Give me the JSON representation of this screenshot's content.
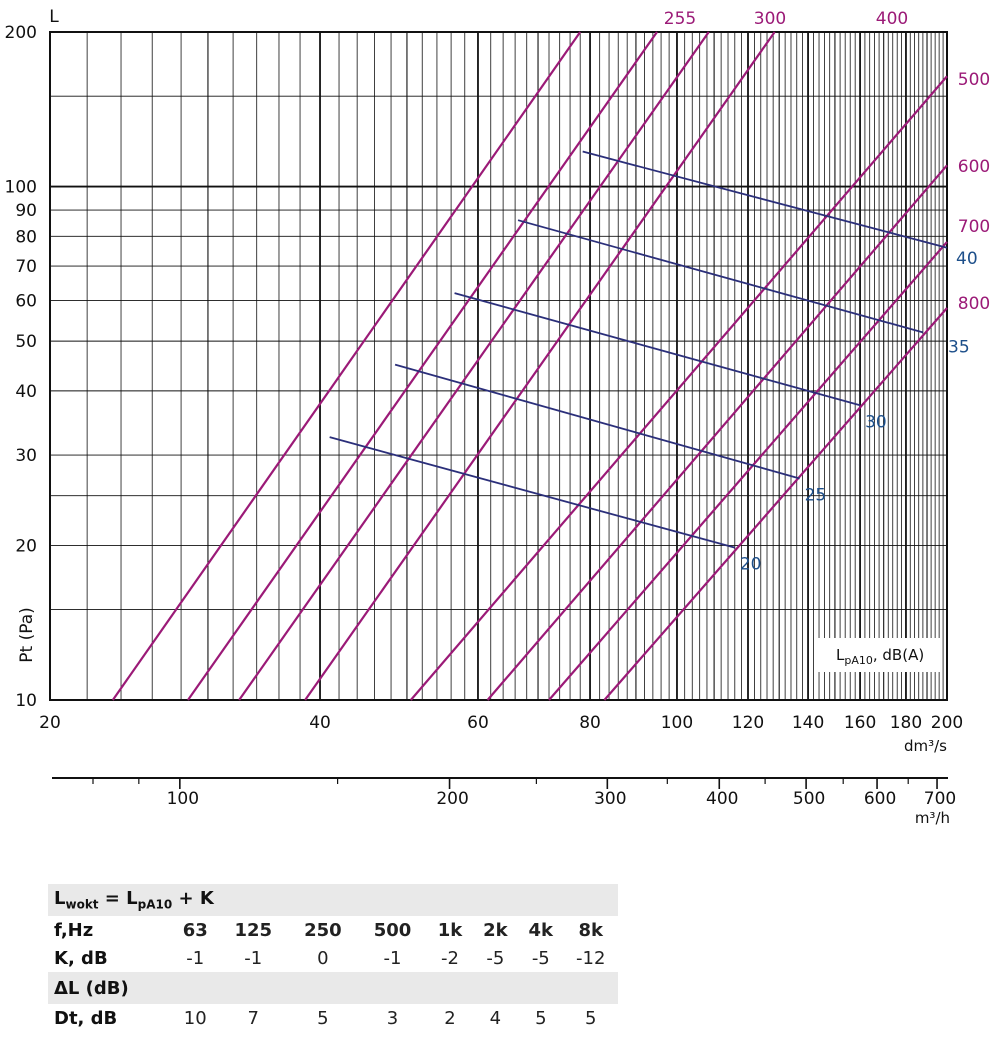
{
  "chart_data": {
    "type": "line",
    "xlabel": "dm³/s",
    "ylabel": "Pt (Pa)",
    "y_top_label": "L",
    "legend_label": "L_pA10, dB(A)",
    "legend_main": "L",
    "legend_sub": "pA10",
    "legend_tail": ", dB(A)",
    "x_scale": "log",
    "y_scale": "log",
    "xlim": [
      20,
      200
    ],
    "ylim": [
      10,
      200
    ],
    "x_ticks": [
      20,
      40,
      60,
      80,
      100,
      120,
      140,
      160,
      180,
      200
    ],
    "x_tick_labels": [
      "20",
      "40",
      "60",
      "80",
      "100",
      "120",
      "140",
      "160",
      "180",
      "200"
    ],
    "y_ticks": [
      10,
      20,
      30,
      40,
      50,
      60,
      70,
      80,
      90,
      100,
      200
    ],
    "y_tick_labels": [
      "10",
      "20",
      "30",
      "40",
      "50",
      "60",
      "70",
      "80",
      "90",
      "100",
      "200"
    ],
    "grid": true,
    "secondary_axis": {
      "label": "m³/h",
      "tick_values": [
        100,
        200,
        300,
        400,
        500,
        600,
        700
      ],
      "tick_labels": [
        "100",
        "200",
        "300",
        "400",
        "500",
        "600",
        "700"
      ]
    },
    "diameter_series": [
      {
        "name": "255",
        "points": [
          [
            23.5,
            10
          ],
          [
            78,
            200
          ]
        ]
      },
      {
        "name": "300",
        "points": [
          [
            28.5,
            10
          ],
          [
            95,
            200
          ]
        ]
      },
      {
        "name": "400",
        "points": [
          [
            38.5,
            10
          ],
          [
            128.5,
            200
          ]
        ]
      },
      {
        "name": "500",
        "points": [
          [
            50.5,
            10
          ],
          [
            200,
            164
          ]
        ]
      },
      {
        "name": "600",
        "points": [
          [
            61.5,
            10
          ],
          [
            200,
            110
          ]
        ]
      },
      {
        "name": "700",
        "points": [
          [
            72,
            10
          ],
          [
            200,
            78
          ]
        ]
      },
      {
        "name": "800",
        "points": [
          [
            83,
            10
          ],
          [
            200,
            58
          ]
        ]
      }
    ],
    "extra_diameter_series": [
      {
        "points": [
          [
            32.5,
            10
          ],
          [
            108.5,
            200
          ]
        ]
      }
    ],
    "sound_series": [
      {
        "name": "20",
        "points": [
          [
            41,
            32.5
          ],
          [
            116,
            19.8
          ]
        ]
      },
      {
        "name": "25",
        "points": [
          [
            48.5,
            45
          ],
          [
            137,
            27
          ]
        ]
      },
      {
        "name": "30",
        "points": [
          [
            56.5,
            62
          ],
          [
            160,
            37.5
          ]
        ]
      },
      {
        "name": "35",
        "points": [
          [
            66.5,
            86
          ],
          [
            188,
            52
          ]
        ]
      },
      {
        "name": "40",
        "points": [
          [
            78.5,
            117
          ],
          [
            200,
            76
          ]
        ]
      }
    ]
  },
  "table": {
    "title_main": "L",
    "title_sub1": "wokt",
    "title_mid": " = L",
    "title_sub2": "pA10",
    "title_end": " + K",
    "hz_label": "f,Hz",
    "freqs": [
      "63",
      "125",
      "250",
      "500",
      "1k",
      "2k",
      "4k",
      "8k"
    ],
    "k_label": "K, dB",
    "k_values": [
      "-1",
      "-1",
      "0",
      "-1",
      "-2",
      "-5",
      "-5",
      "-12"
    ],
    "dl_title": "ΔL (dB)",
    "dt_label": "Dt, dB",
    "dt_values": [
      "10",
      "7",
      "5",
      "3",
      "2",
      "4",
      "5",
      "5"
    ]
  },
  "colors": {
    "diameter_line": "#9b1a77",
    "sound_line": "#2b2f7a",
    "sound_label": "#1d4f8a",
    "grid": "#111111",
    "table_band": "#e9e9e9"
  }
}
